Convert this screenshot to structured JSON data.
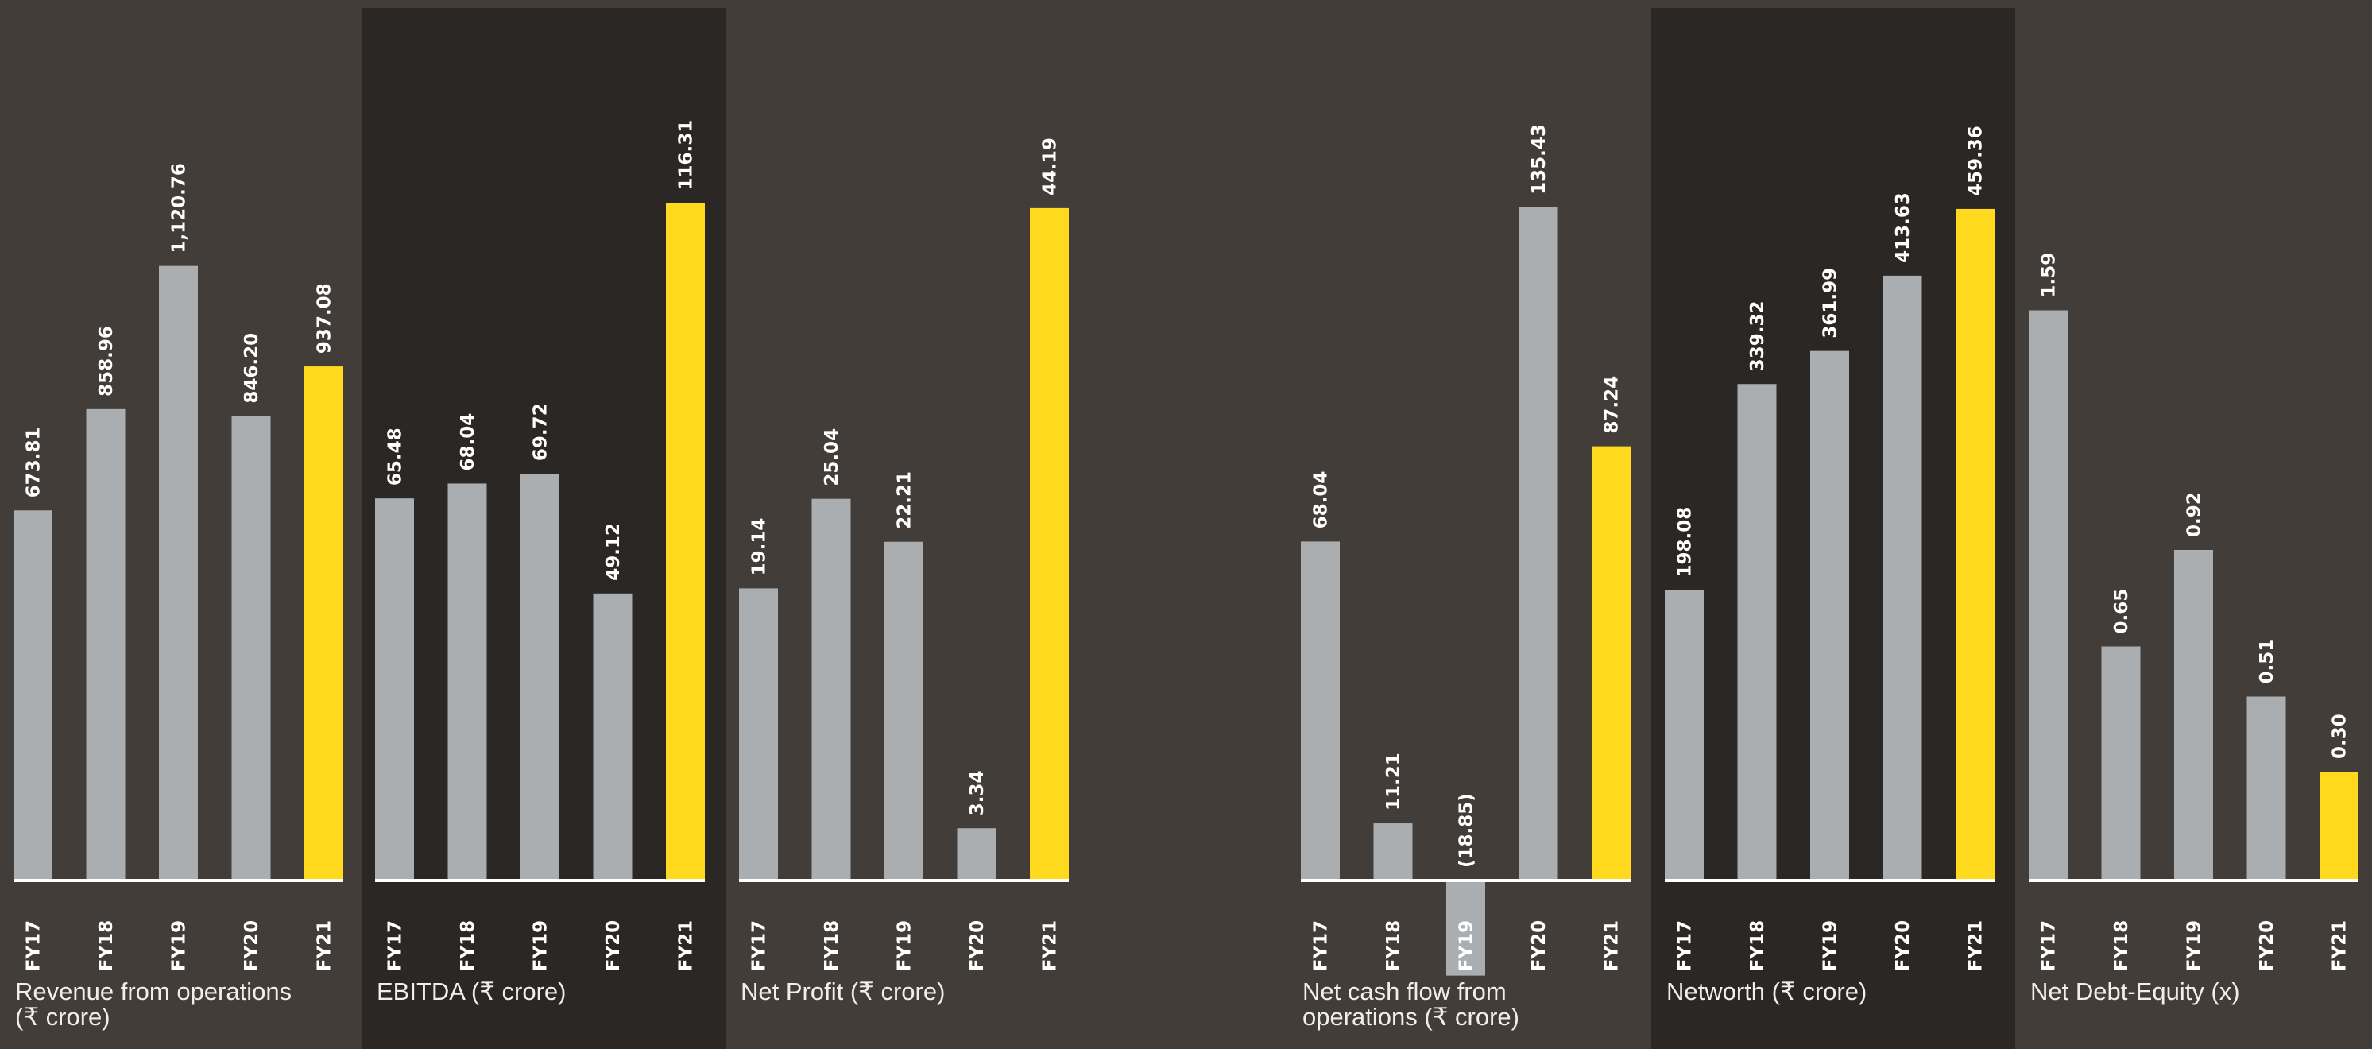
{
  "colors": {
    "background": "#433d39",
    "dark_panel": "#2b2724",
    "bar": "#abaeb0",
    "highlight": "#ffd91e",
    "axis": "#ffffff",
    "text": "#ffffff"
  },
  "chart_data": [
    {
      "type": "bar",
      "title": "Revenue from operations\n(₹ crore)",
      "categories": [
        "FY17",
        "FY18",
        "FY19",
        "FY20",
        "FY21"
      ],
      "values": [
        673.81,
        858.96,
        1120.76,
        846.2,
        937.08
      ],
      "value_labels": [
        "673.81",
        "858.96",
        "1,120.76",
        "846.20",
        "937.08"
      ],
      "highlight_index": 4,
      "ylim": [
        0,
        1360
      ],
      "dark_background": false
    },
    {
      "type": "bar",
      "title": "EBITDA (₹ crore)",
      "categories": [
        "FY17",
        "FY18",
        "FY19",
        "FY20",
        "FY21"
      ],
      "values": [
        65.48,
        68.04,
        69.72,
        49.12,
        116.31
      ],
      "value_labels": [
        "65.48",
        "68.04",
        "69.72",
        "49.12",
        "116.31"
      ],
      "highlight_index": 4,
      "ylim": [
        0,
        128
      ],
      "dark_background": true
    },
    {
      "type": "bar",
      "title": "Net Profit (₹ crore)",
      "categories": [
        "FY17",
        "FY18",
        "FY19",
        "FY20",
        "FY21"
      ],
      "values": [
        19.14,
        25.04,
        22.21,
        3.34,
        44.19
      ],
      "value_labels": [
        "19.14",
        "25.04",
        "22.21",
        "3.34",
        "44.19"
      ],
      "highlight_index": 4,
      "ylim": [
        0,
        49
      ],
      "dark_background": false
    },
    {
      "type": "bar",
      "title": "Net cash flow from\n operations (₹ crore)",
      "categories": [
        "FY17",
        "FY18",
        "FY19",
        "FY20",
        "FY21"
      ],
      "values": [
        68.04,
        11.21,
        -18.85,
        135.43,
        87.24
      ],
      "value_labels": [
        "68.04",
        "11.21",
        "(18.85)",
        "135.43",
        "87.24"
      ],
      "highlight_index": 4,
      "ylim": [
        0,
        150
      ],
      "dark_background": false
    },
    {
      "type": "bar",
      "title": "Networth (₹ crore)",
      "categories": [
        "FY17",
        "FY18",
        "FY19",
        "FY20",
        "FY21"
      ],
      "values": [
        198.08,
        339.32,
        361.99,
        413.63,
        459.36
      ],
      "value_labels": [
        "198.08",
        "339.32",
        "361.99",
        "413.63",
        "459.36"
      ],
      "highlight_index": 4,
      "ylim": [
        0,
        510
      ],
      "dark_background": true
    },
    {
      "type": "bar",
      "title": "Net Debt-Equity (x)",
      "categories": [
        "FY17",
        "FY18",
        "FY19",
        "FY20",
        "FY21"
      ],
      "values": [
        1.59,
        0.65,
        0.92,
        0.51,
        0.3
      ],
      "value_labels": [
        "1.59",
        "0.65",
        "0.92",
        "0.51",
        "0.30"
      ],
      "highlight_index": 4,
      "ylim": [
        0,
        2.08
      ],
      "dark_background": false
    }
  ]
}
